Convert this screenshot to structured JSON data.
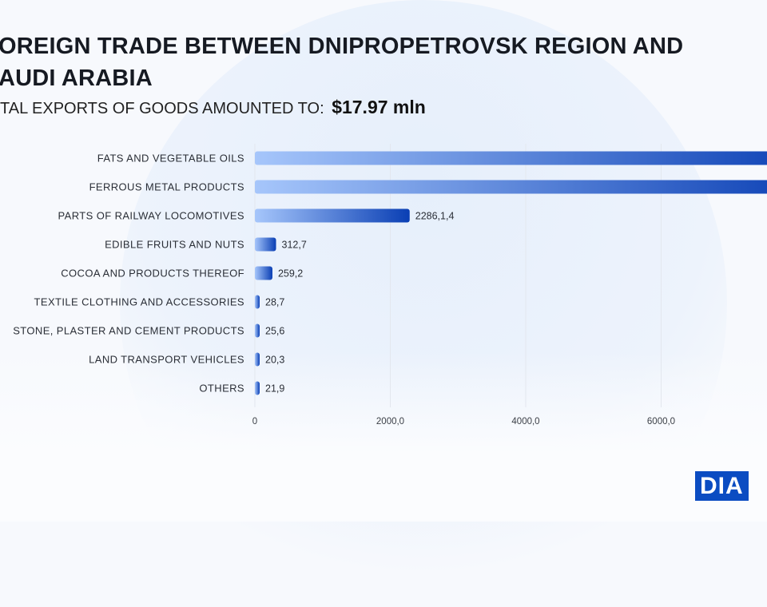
{
  "title_lines": [
    "OREIGN TRADE BETWEEN DNIPROPETROVSK REGION AND",
    "AUDI ARABIA"
  ],
  "subtitle": {
    "text": "TAL EXPORTS OF GOODS AMOUNTED TO:",
    "amount": "$17.97  mln"
  },
  "logo": "DIA",
  "colors": {
    "bar_start": "#a6c6fb",
    "bar_end": "#0a3fb4",
    "grid": "#e3e7ee"
  },
  "chart_data": {
    "type": "bar",
    "orientation": "horizontal",
    "categories": [
      "FATS AND VEGETABLE OILS",
      "FERROUS METAL PRODUCTS",
      "PARTS OF RAILWAY LOCOMOTIVES",
      "EDIBLE FRUITS AND NUTS",
      "COCOA AND PRODUCTS THEREOF",
      "TEXTILE CLOTHING AND ACCESSORIES",
      "STONE, PLASTER AND CEMENT PRODUCTS",
      "LAND TRANSPORT VEHICLES",
      "OTHERS"
    ],
    "values": [
      null,
      null,
      2286.14,
      312.7,
      259.2,
      28.7,
      25.6,
      20.3,
      21.9
    ],
    "value_labels": [
      "",
      "",
      "2286,1,4",
      "312,7",
      "259,2",
      "28,7",
      "25,6",
      "20,3",
      "21,9"
    ],
    "xticks": [
      0,
      2000,
      4000,
      6000
    ],
    "xtick_labels": [
      "0",
      "2000,0",
      "4000,0",
      "6000,0"
    ],
    "grid": true
  }
}
